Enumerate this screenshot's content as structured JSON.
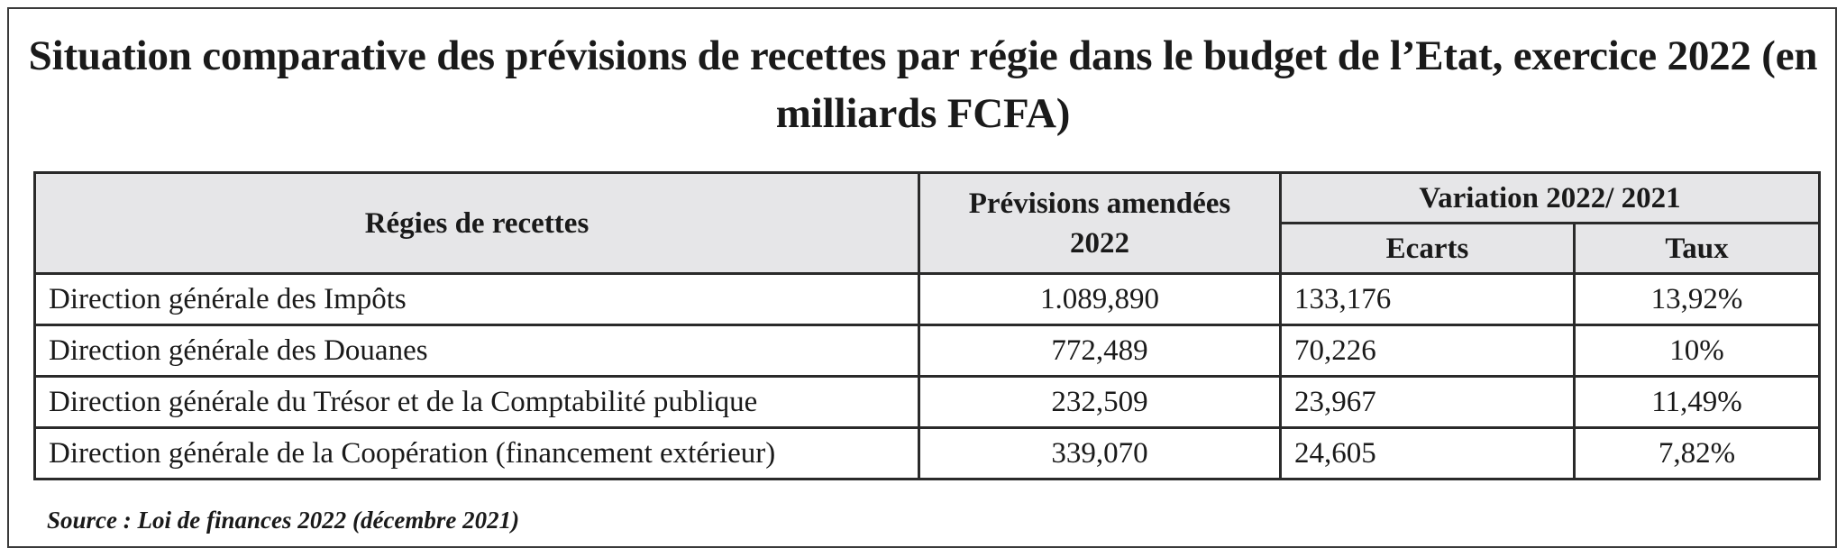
{
  "title": "Situation comparative des prévisions de recettes par régie dans le budget de l’Etat, exercice 2022 (en milliards FCFA)",
  "table": {
    "header": {
      "regies": "Régies de recettes",
      "previsions": "Prévisions amendées 2022",
      "variation": "Variation 2022/ 2021",
      "ecarts": "Ecarts",
      "taux": "Taux"
    },
    "rows": [
      {
        "name": "Direction générale des Impôts",
        "previsions": "1.089,890",
        "ecarts": "133,176",
        "taux": "13,92%"
      },
      {
        "name": "Direction générale des Douanes",
        "previsions": "772,489",
        "ecarts": "70,226",
        "taux": "10%"
      },
      {
        "name": "Direction générale du Trésor et de la Comptabilité publique",
        "previsions": "232,509",
        "ecarts": "23,967",
        "taux": "11,49%"
      },
      {
        "name": "Direction générale de la Coopération (financement extérieur)",
        "previsions": "339,070",
        "ecarts": "24,605",
        "taux": "7,82%"
      }
    ]
  },
  "source": "Source : Loi de finances 2022 (décembre 2021)"
}
